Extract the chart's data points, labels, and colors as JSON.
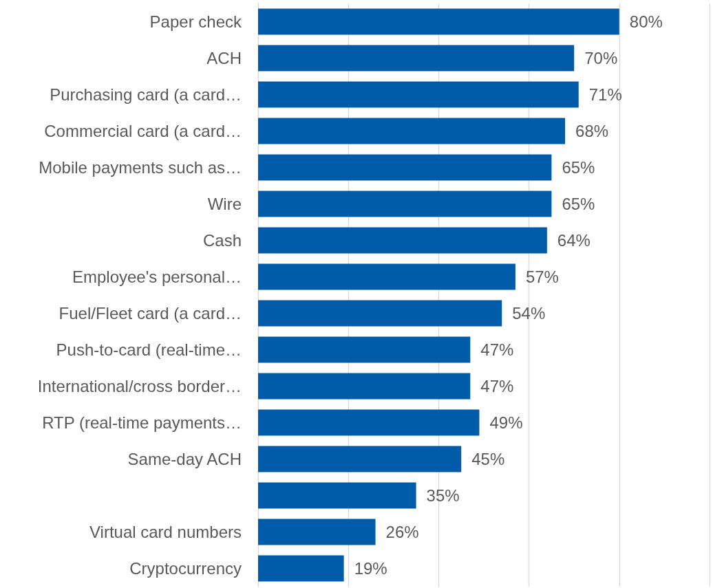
{
  "chart_data": {
    "type": "bar",
    "orientation": "horizontal",
    "categories": [
      "Paper check",
      "ACH",
      "Purchasing card (a card…",
      "Commercial card (a card…",
      "Mobile payments such as…",
      "Wire",
      "Cash",
      "Employee's personal…",
      "Fuel/Fleet card (a card…",
      "Push-to-card (real-time…",
      "International/cross border…",
      "RTP (real-time payments…",
      "Same-day ACH",
      null,
      "Virtual card numbers",
      "Cryptocurrency"
    ],
    "values": [
      80,
      70,
      71,
      68,
      65,
      65,
      64,
      57,
      54,
      47,
      47,
      49,
      45,
      35,
      26,
      19
    ],
    "value_labels": [
      "80%",
      "70%",
      "71%",
      "68%",
      "65%",
      "65%",
      "64%",
      "57%",
      "54%",
      "47%",
      "47%",
      "49%",
      "45%",
      "35%",
      "26%",
      "19%"
    ],
    "color": "#005ca9",
    "xlim": [
      0,
      100
    ],
    "xticks": [
      {
        "value": 0,
        "label": null
      },
      {
        "value": 20,
        "label": null
      },
      {
        "value": 40,
        "label": null
      },
      {
        "value": 60,
        "label": null
      },
      {
        "value": 80,
        "label": null
      },
      {
        "value": 100,
        "label": null
      }
    ],
    "grid": "x",
    "tick_labels": "y"
  }
}
